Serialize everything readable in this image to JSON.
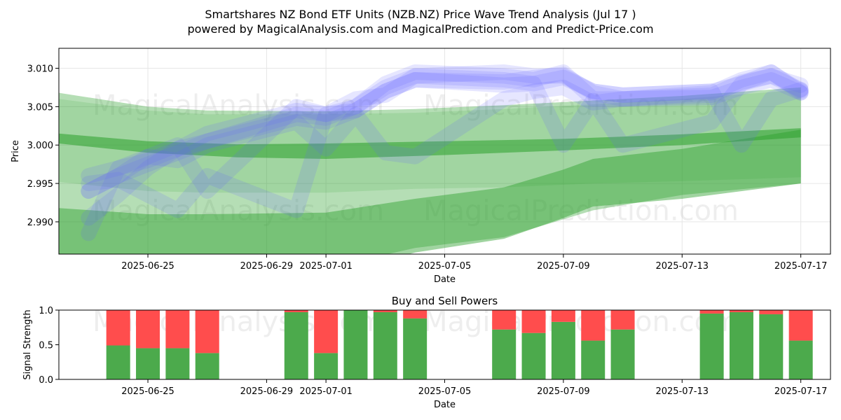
{
  "title_line1": "Smartshares NZ Bond ETF Units (NZB.NZ) Price Wave Trend Analysis (Jul 17 )",
  "title_line2": "powered by MagicalAnalysis.com and MagicalPrediction.com and Predict-Price.com",
  "watermarks": [
    "MagicalAnalysis.com",
    "MagicalPrediction.com"
  ],
  "colors": {
    "green_band": "#2ca02c",
    "blue_wave": "#6464ff",
    "buy": "#4caa4c",
    "sell": "#ff4d4d",
    "grid": "#e6e6e6"
  },
  "chart_data": [
    {
      "type": "area",
      "title": "",
      "xlabel": "Date",
      "ylabel": "Price",
      "xlim": [
        "2025-06-22",
        "2025-07-18"
      ],
      "ylim": [
        2.9858,
        3.0126
      ],
      "grid": true,
      "x_ticks": [
        "2025-06-25",
        "2025-06-29",
        "2025-07-01",
        "2025-07-05",
        "2025-07-09",
        "2025-07-13",
        "2025-07-17"
      ],
      "y_ticks": [
        "2.990",
        "2.995",
        "3.000",
        "3.005",
        "3.010"
      ],
      "bands": [
        {
          "name": "outer",
          "x": [
            "2025-06-22",
            "2025-06-25",
            "2025-06-27",
            "2025-07-01",
            "2025-07-04",
            "2025-07-07",
            "2025-07-10",
            "2025-07-13",
            "2025-07-17"
          ],
          "upper": [
            3.0068,
            3.005,
            3.0045,
            3.0044,
            3.0047,
            3.0052,
            3.0058,
            3.0064,
            3.0075
          ],
          "lower": [
            2.9855,
            2.983,
            2.983,
            2.984,
            2.9866,
            2.988,
            2.9915,
            2.9935,
            2.995
          ]
        },
        {
          "name": "upper-band",
          "x": [
            "2025-06-22",
            "2025-06-25",
            "2025-06-27",
            "2025-07-01",
            "2025-07-04",
            "2025-07-07",
            "2025-07-10",
            "2025-07-13",
            "2025-07-17"
          ],
          "upper": [
            3.006,
            3.0045,
            3.004,
            3.004,
            3.0042,
            3.0047,
            3.0053,
            3.006,
            3.0072
          ],
          "lower": [
            2.9952,
            2.994,
            2.9938,
            2.9938,
            2.9943,
            2.9945,
            2.995,
            2.9953,
            2.9958
          ]
        },
        {
          "name": "lower-band",
          "x": [
            "2025-06-22",
            "2025-06-25",
            "2025-06-27",
            "2025-07-01",
            "2025-07-04",
            "2025-07-07",
            "2025-07-09",
            "2025-07-10",
            "2025-07-13",
            "2025-07-17"
          ],
          "upper": [
            2.9918,
            2.991,
            2.991,
            2.9912,
            2.993,
            2.9945,
            2.9968,
            2.9982,
            2.9995,
            3.002
          ],
          "lower": [
            2.983,
            2.982,
            2.982,
            2.983,
            2.986,
            2.9878,
            2.9905,
            2.992,
            2.993,
            2.995
          ]
        },
        {
          "name": "center",
          "x": [
            "2025-06-22",
            "2025-06-25",
            "2025-06-28",
            "2025-07-01",
            "2025-07-05",
            "2025-07-09",
            "2025-07-13",
            "2025-07-17"
          ],
          "upper": [
            3.0015,
            3.0005,
            3.0001,
            3.0002,
            3.0005,
            3.0008,
            3.0014,
            3.0022
          ],
          "lower": [
            3.0002,
            2.999,
            2.9984,
            2.9982,
            2.9987,
            2.9993,
            3.0,
            3.001
          ]
        }
      ],
      "waves": [
        {
          "x": [
            "2025-06-23",
            "2025-06-24",
            "2025-06-25",
            "2025-06-26",
            "2025-06-27",
            "2025-06-30",
            "2025-07-01",
            "2025-07-02",
            "2025-07-03",
            "2025-07-04",
            "2025-07-07",
            "2025-07-08",
            "2025-07-09",
            "2025-07-10",
            "2025-07-11",
            "2025-07-14",
            "2025-07-15",
            "2025-07-16",
            "2025-07-17"
          ],
          "y": [
            2.994,
            2.996,
            2.9975,
            2.999,
            3.0005,
            3.004,
            3.0035,
            3.005,
            3.0075,
            3.009,
            3.0085,
            3.008,
            3.0088,
            3.007,
            3.0065,
            3.007,
            3.008,
            3.009,
            3.0072
          ]
        },
        {
          "x": [
            "2025-06-23",
            "2025-06-24",
            "2025-06-25",
            "2025-06-26",
            "2025-06-27",
            "2025-06-30",
            "2025-07-01",
            "2025-07-02",
            "2025-07-03",
            "2025-07-04",
            "2025-07-07",
            "2025-07-08",
            "2025-07-09",
            "2025-07-10",
            "2025-07-11",
            "2025-07-14",
            "2025-07-15",
            "2025-07-16",
            "2025-07-17"
          ],
          "y": [
            2.9885,
            2.997,
            2.998,
            2.9995,
            3.0015,
            3.0045,
            3.004,
            3.005,
            3.008,
            3.0095,
            3.009,
            3.0085,
            3.0095,
            3.006,
            3.006,
            3.0068,
            3.0085,
            3.0095,
            3.007
          ]
        },
        {
          "x": [
            "2025-06-23",
            "2025-06-24",
            "2025-06-25",
            "2025-06-26",
            "2025-06-27",
            "2025-06-30",
            "2025-07-01",
            "2025-07-02",
            "2025-07-03",
            "2025-07-04",
            "2025-07-07",
            "2025-07-08",
            "2025-07-09",
            "2025-07-10",
            "2025-07-11",
            "2025-07-14",
            "2025-07-15",
            "2025-07-16",
            "2025-07-17"
          ],
          "y": [
            2.996,
            2.997,
            2.9985,
            2.998,
            3.0,
            3.003,
            2.9995,
            3.004,
            2.999,
            2.9985,
            3.006,
            3.007,
            3.0075,
            3.0055,
            3.006,
            3.0065,
            3.0082,
            3.009,
            3.0078
          ]
        },
        {
          "x": [
            "2025-06-23",
            "2025-06-24",
            "2025-06-25",
            "2025-06-26",
            "2025-06-27",
            "2025-06-30",
            "2025-07-01",
            "2025-07-02",
            "2025-07-03",
            "2025-07-04",
            "2025-07-07",
            "2025-07-08",
            "2025-07-09",
            "2025-07-10",
            "2025-07-11",
            "2025-07-14",
            "2025-07-15",
            "2025-07-16",
            "2025-07-17"
          ],
          "y": [
            2.995,
            2.9955,
            2.9935,
            2.9915,
            2.996,
            2.9915,
            3.004,
            3.0045,
            3.007,
            3.0085,
            3.0078,
            3.008,
            3.0,
            3.0058,
            3.0,
            3.003,
            3.008,
            3.0095,
            3.0068
          ]
        },
        {
          "x": [
            "2025-06-23",
            "2025-06-24",
            "2025-06-25",
            "2025-06-26",
            "2025-06-27",
            "2025-06-30",
            "2025-07-01",
            "2025-07-02",
            "2025-07-03",
            "2025-07-04",
            "2025-07-07",
            "2025-07-08",
            "2025-07-09",
            "2025-07-10",
            "2025-07-11",
            "2025-07-14",
            "2025-07-15",
            "2025-07-16",
            "2025-07-17"
          ],
          "y": [
            2.994,
            2.996,
            2.9985,
            3.0,
            2.994,
            3.005,
            3.004,
            3.006,
            3.0065,
            3.009,
            3.0095,
            3.009,
            3.009,
            3.007,
            3.0065,
            3.007,
            3.0,
            3.006,
            3.0072
          ]
        },
        {
          "x": [
            "2025-06-23",
            "2025-06-24",
            "2025-06-25",
            "2025-06-26",
            "2025-06-27",
            "2025-06-30",
            "2025-07-01",
            "2025-07-02",
            "2025-07-03",
            "2025-07-04",
            "2025-07-07",
            "2025-07-08",
            "2025-07-09",
            "2025-07-10",
            "2025-07-11",
            "2025-07-14",
            "2025-07-15",
            "2025-07-16",
            "2025-07-17"
          ],
          "y": [
            2.9905,
            2.9935,
            2.997,
            2.9995,
            3.0005,
            3.0035,
            3.003,
            3.0045,
            3.007,
            3.0085,
            3.0082,
            3.0088,
            3.0092,
            3.0068,
            3.006,
            3.0062,
            3.0075,
            3.0085,
            3.0068
          ]
        }
      ]
    },
    {
      "type": "bar",
      "title": "Buy and Sell Powers",
      "xlabel": "Date",
      "ylabel": "Signal Strength",
      "ylim": [
        0,
        1
      ],
      "y_ticks": [
        "0.0",
        "0.5",
        "1.0"
      ],
      "x_ticks": [
        "2025-06-25",
        "2025-06-29",
        "2025-07-01",
        "2025-07-05",
        "2025-07-09",
        "2025-07-13",
        "2025-07-17"
      ],
      "categories": [
        "2025-06-24",
        "2025-06-25",
        "2025-06-26",
        "2025-06-27",
        "2025-06-30",
        "2025-07-01",
        "2025-07-02",
        "2025-07-03",
        "2025-07-04",
        "2025-07-07",
        "2025-07-08",
        "2025-07-09",
        "2025-07-10",
        "2025-07-11",
        "2025-07-14",
        "2025-07-15",
        "2025-07-16",
        "2025-07-17"
      ],
      "series": [
        {
          "name": "Buy",
          "values": [
            0.49,
            0.45,
            0.45,
            0.38,
            0.97,
            0.38,
            1.0,
            0.97,
            0.88,
            0.72,
            0.67,
            0.83,
            0.56,
            0.72,
            0.95,
            0.97,
            0.94,
            0.56
          ]
        },
        {
          "name": "Sell",
          "values": [
            0.51,
            0.55,
            0.55,
            0.62,
            0.03,
            0.62,
            0.0,
            0.03,
            0.12,
            0.28,
            0.33,
            0.17,
            0.44,
            0.28,
            0.05,
            0.03,
            0.06,
            0.44
          ]
        }
      ]
    }
  ]
}
